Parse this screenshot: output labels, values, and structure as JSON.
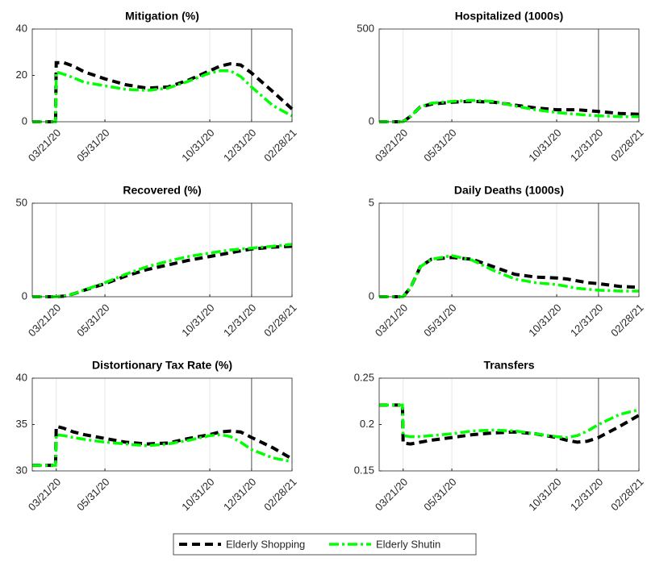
{
  "chart_data": [
    {
      "type": "line",
      "title": "Mitigation (%)",
      "x": [
        "02/15/20",
        "03/20/20",
        "03/21/20",
        "04/01/20",
        "04/15/20",
        "05/01/20",
        "05/31/20",
        "06/30/20",
        "07/31/20",
        "08/31/20",
        "09/30/20",
        "10/31/20",
        "11/15/20",
        "11/30/20",
        "12/15/20",
        "12/31/20",
        "01/31/21",
        "02/28/21"
      ],
      "xlim": [
        "02/15/20",
        "02/28/21"
      ],
      "xticks": [
        "03/21/20",
        "05/31/20",
        "10/31/20",
        "12/31/20",
        "02/28/21"
      ],
      "vline": "12/31/20",
      "ylim": [
        0,
        40
      ],
      "yticks": [
        0,
        20,
        40
      ],
      "series": [
        {
          "name": "Elderly Shopping",
          "color": "#000000",
          "values": [
            0,
            0,
            25.5,
            25.5,
            24,
            21.5,
            18.5,
            16,
            14.5,
            15,
            18,
            22,
            24,
            25,
            24.5,
            21,
            13,
            5.5
          ]
        },
        {
          "name": "Elderly Shutin",
          "color": "#00ff00",
          "values": [
            0,
            0,
            21.5,
            20.5,
            19,
            17,
            15.5,
            14,
            13.5,
            14.5,
            17.5,
            21,
            22,
            22,
            19.5,
            15,
            7,
            2.5
          ]
        }
      ]
    },
    {
      "type": "line",
      "title": "Hospitalized (1000s)",
      "x": [
        "02/15/20",
        "03/20/20",
        "03/21/20",
        "04/01/20",
        "04/15/20",
        "05/01/20",
        "05/31/20",
        "06/30/20",
        "07/31/20",
        "08/31/20",
        "09/30/20",
        "10/31/20",
        "11/15/20",
        "11/30/20",
        "12/15/20",
        "12/31/20",
        "01/31/21",
        "02/28/21"
      ],
      "xlim": [
        "02/15/20",
        "02/28/21"
      ],
      "xticks": [
        "03/21/20",
        "05/31/20",
        "10/31/20",
        "12/31/20",
        "02/28/21"
      ],
      "vline": "12/31/20",
      "ylim": [
        0,
        500
      ],
      "yticks": [
        0,
        500
      ],
      "series": [
        {
          "color": "#000000",
          "values": [
            0,
            0,
            0,
            30,
            80,
            95,
            105,
            110,
            105,
            90,
            75,
            65,
            65,
            65,
            60,
            55,
            45,
            40
          ]
        },
        {
          "color": "#00ff00",
          "values": [
            0,
            0,
            0,
            30,
            80,
            100,
            110,
            115,
            110,
            85,
            65,
            50,
            45,
            40,
            35,
            32,
            28,
            28
          ]
        }
      ]
    },
    {
      "type": "line",
      "title": "Recovered (%)",
      "x": [
        "02/15/20",
        "03/20/20",
        "03/21/20",
        "04/01/20",
        "04/15/20",
        "05/01/20",
        "05/31/20",
        "06/30/20",
        "07/31/20",
        "08/31/20",
        "09/30/20",
        "10/31/20",
        "11/15/20",
        "11/30/20",
        "12/15/20",
        "12/31/20",
        "01/31/21",
        "02/28/21"
      ],
      "xlim": [
        "02/15/20",
        "02/28/21"
      ],
      "xticks": [
        "03/21/20",
        "05/31/20",
        "10/31/20",
        "12/31/20",
        "02/28/21"
      ],
      "vline": "12/31/20",
      "ylim": [
        0,
        50
      ],
      "yticks": [
        0,
        50
      ],
      "series": [
        {
          "color": "#000000",
          "values": [
            0,
            0,
            0,
            0.3,
            1.5,
            3.5,
            7,
            11,
            14.5,
            17,
            19.5,
            21.5,
            22.5,
            23.5,
            24.5,
            25.5,
            26.5,
            27
          ]
        },
        {
          "color": "#00ff00",
          "values": [
            0,
            0,
            0,
            0.3,
            1.5,
            3.6,
            7.5,
            12,
            16,
            19,
            21.5,
            23.3,
            24.2,
            25,
            25.5,
            26,
            27,
            28
          ]
        }
      ]
    },
    {
      "type": "line",
      "title": "Daily Deaths (1000s)",
      "x": [
        "02/15/20",
        "03/20/20",
        "03/21/20",
        "04/01/20",
        "04/15/20",
        "05/01/20",
        "05/31/20",
        "06/30/20",
        "07/31/20",
        "08/31/20",
        "09/30/20",
        "10/31/20",
        "11/15/20",
        "11/30/20",
        "12/15/20",
        "12/31/20",
        "01/31/21",
        "02/28/21"
      ],
      "xlim": [
        "02/15/20",
        "02/28/21"
      ],
      "xticks": [
        "03/21/20",
        "05/31/20",
        "10/31/20",
        "12/31/20",
        "02/28/21"
      ],
      "vline": "12/31/20",
      "ylim": [
        0,
        5
      ],
      "yticks": [
        0,
        5
      ],
      "series": [
        {
          "color": "#000000",
          "values": [
            0,
            0,
            0,
            0.5,
            1.6,
            2,
            2.1,
            2,
            1.6,
            1.2,
            1.05,
            1,
            0.95,
            0.85,
            0.75,
            0.7,
            0.55,
            0.5
          ]
        },
        {
          "color": "#00ff00",
          "values": [
            0,
            0,
            0,
            0.5,
            1.6,
            2,
            2.2,
            1.95,
            1.4,
            0.95,
            0.75,
            0.65,
            0.55,
            0.45,
            0.4,
            0.35,
            0.3,
            0.3
          ]
        }
      ]
    },
    {
      "type": "line",
      "title": "Distortionary Tax Rate (%)",
      "x": [
        "02/15/20",
        "03/20/20",
        "03/21/20",
        "04/01/20",
        "04/15/20",
        "05/01/20",
        "05/31/20",
        "06/30/20",
        "07/31/20",
        "08/31/20",
        "09/30/20",
        "10/31/20",
        "11/15/20",
        "11/30/20",
        "12/15/20",
        "12/31/20",
        "01/31/21",
        "02/28/21"
      ],
      "xlim": [
        "02/15/20",
        "02/28/21"
      ],
      "xticks": [
        "03/21/20",
        "05/31/20",
        "10/31/20",
        "12/31/20",
        "02/28/21"
      ],
      "vline": "12/31/20",
      "ylim": [
        30,
        40
      ],
      "yticks": [
        30,
        35,
        40
      ],
      "series": [
        {
          "color": "#000000",
          "values": [
            30.6,
            30.6,
            34.8,
            34.6,
            34.2,
            33.9,
            33.5,
            33.1,
            32.9,
            33,
            33.5,
            33.9,
            34.2,
            34.3,
            34.2,
            33.6,
            32.5,
            31.3
          ]
        },
        {
          "color": "#00ff00",
          "values": [
            30.6,
            30.6,
            33.9,
            33.8,
            33.6,
            33.4,
            33.1,
            32.9,
            32.7,
            32.9,
            33.3,
            33.8,
            33.9,
            33.7,
            33.1,
            32.3,
            31.4,
            31
          ]
        }
      ]
    },
    {
      "type": "line",
      "title": "Transfers",
      "x": [
        "02/15/20",
        "03/20/20",
        "03/21/20",
        "04/01/20",
        "04/15/20",
        "05/01/20",
        "05/31/20",
        "06/30/20",
        "07/31/20",
        "08/31/20",
        "09/30/20",
        "10/31/20",
        "11/15/20",
        "11/30/20",
        "12/15/20",
        "12/31/20",
        "01/31/21",
        "02/28/21"
      ],
      "xlim": [
        "02/15/20",
        "02/28/21"
      ],
      "xticks": [
        "03/21/20",
        "05/31/20",
        "10/31/20",
        "12/31/20",
        "02/28/21"
      ],
      "vline": "12/31/20",
      "ylim": [
        0.15,
        0.25
      ],
      "yticks": [
        0.15,
        0.2,
        0.25
      ],
      "series": [
        {
          "color": "#000000",
          "values": [
            0.221,
            0.221,
            0.18,
            0.179,
            0.181,
            0.183,
            0.186,
            0.189,
            0.191,
            0.192,
            0.19,
            0.186,
            0.183,
            0.181,
            0.182,
            0.186,
            0.198,
            0.21
          ]
        },
        {
          "color": "#00ff00",
          "values": [
            0.221,
            0.221,
            0.188,
            0.187,
            0.187,
            0.188,
            0.19,
            0.193,
            0.194,
            0.193,
            0.19,
            0.187,
            0.186,
            0.188,
            0.193,
            0.2,
            0.211,
            0.216
          ]
        }
      ]
    }
  ]
}
